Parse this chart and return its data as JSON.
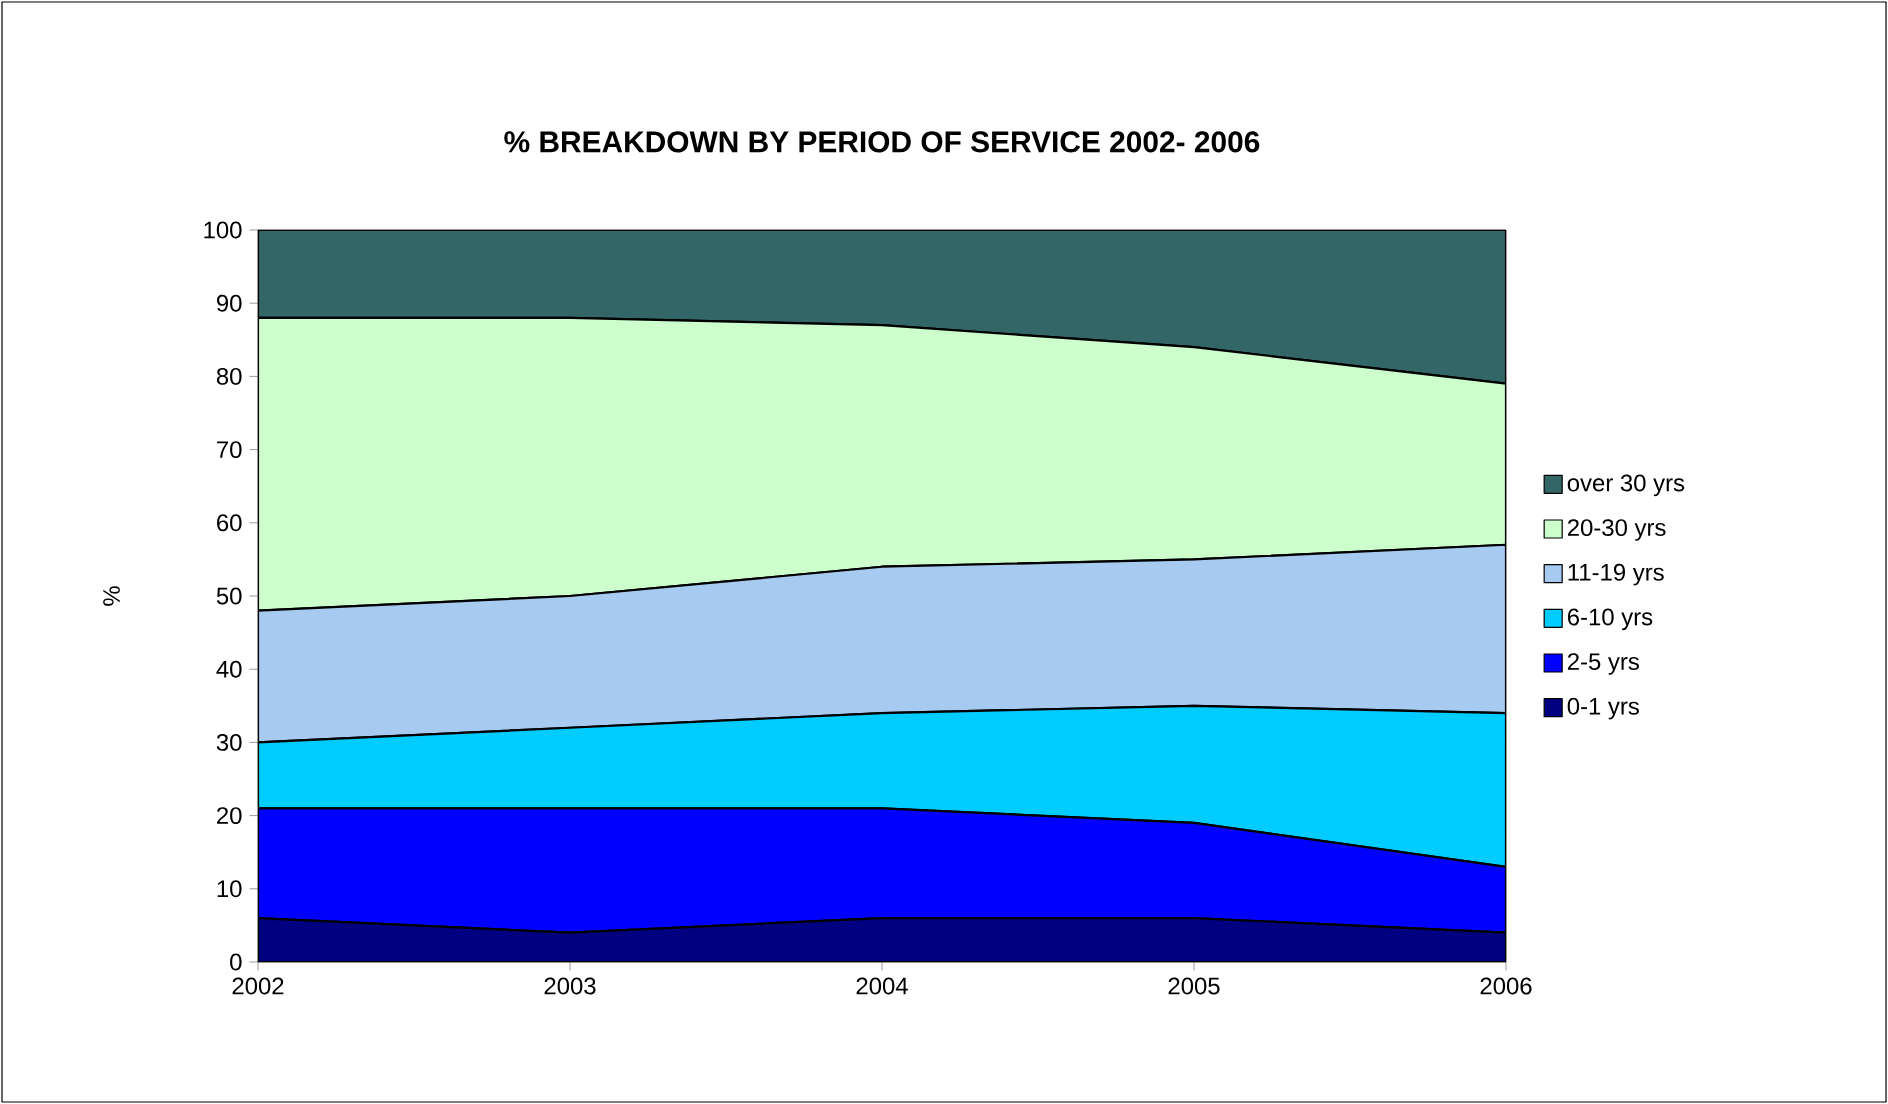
{
  "chart_data": {
    "type": "area",
    "title": "% BREAKDOWN BY PERIOD OF SERVICE 2002- 2006",
    "ylabel": "%",
    "stacked": true,
    "x": [
      2002,
      2003,
      2004,
      2005,
      2006
    ],
    "xlim": [
      2002,
      2006
    ],
    "xticks": [
      2002,
      2003,
      2004,
      2005,
      2006
    ],
    "ylim": [
      0,
      100
    ],
    "yticks": [
      0,
      10,
      20,
      30,
      40,
      50,
      60,
      70,
      80,
      90,
      100
    ],
    "grid": false,
    "legend": "right",
    "series": [
      {
        "name": "0-1 yrs",
        "color": "#000080",
        "values": [
          6,
          4,
          6,
          6,
          4
        ]
      },
      {
        "name": "2-5 yrs",
        "color": "#0000ff",
        "values": [
          15,
          17,
          15,
          13,
          9
        ]
      },
      {
        "name": "6-10 yrs",
        "color": "#00ccff",
        "values": [
          9,
          11,
          13,
          16,
          21
        ]
      },
      {
        "name": "11-19 yrs",
        "color": "#a6caf0",
        "values": [
          18,
          18,
          20,
          20,
          23
        ]
      },
      {
        "name": "20-30 yrs",
        "color": "#ccffcc",
        "values": [
          40,
          38,
          33,
          29,
          22
        ]
      },
      {
        "name": "over 30 yrs",
        "color": "#336666",
        "values": [
          12,
          12,
          13,
          16,
          21
        ]
      }
    ]
  }
}
